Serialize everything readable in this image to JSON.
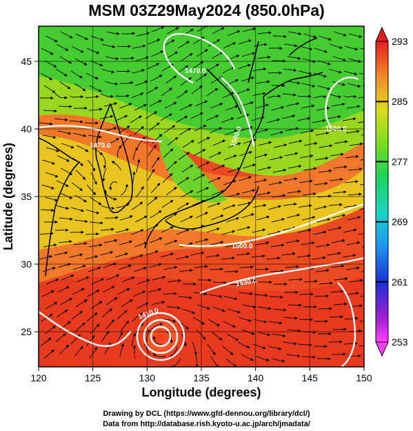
{
  "title": "MSM 03Z29May2024 (850.0hPa)",
  "credits": {
    "line1": "Drawing by DCL (https://www.gfd-dennou.org/library/dcl/)",
    "line2": "Data from http://database.rish.kyoto-u.ac.jp/arch/jmadata/"
  },
  "map": {
    "xlabel": "Longitude (degrees)",
    "ylabel": "Latitude  (degrees)",
    "xlim": [
      120,
      150
    ],
    "ylim": [
      22.4,
      47.6
    ],
    "x_ticks": [
      "120",
      "125",
      "130",
      "135",
      "140",
      "145",
      "150"
    ],
    "y_ticks": [
      "25",
      "30",
      "35",
      "40",
      "45"
    ],
    "contour_labels": [
      "1470.0",
      "1500.0",
      "1500.0",
      "1470.0",
      "1500.0",
      "1530.0",
      "1410.0"
    ]
  },
  "colorbar": {
    "ticks": [
      "293",
      "285",
      "277",
      "269",
      "261",
      "253"
    ],
    "range": [
      253,
      293
    ]
  },
  "colors": {
    "warm": "#e8321e",
    "mid": "#dcd21e",
    "cool": "#2ed22e",
    "contour": "#ffffff",
    "streamline": "#000000"
  }
}
